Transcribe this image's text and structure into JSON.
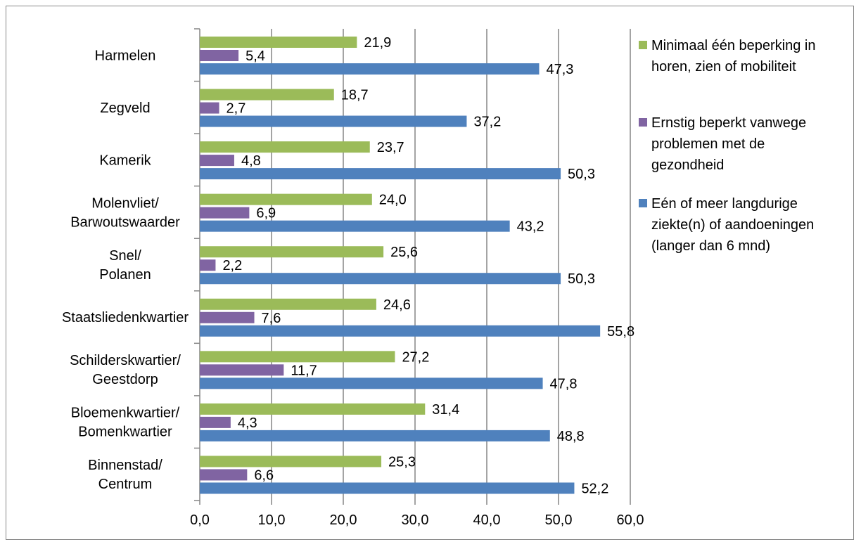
{
  "chart_data": {
    "type": "bar",
    "orientation": "horizontal",
    "categories": [
      "Harmelen",
      "Zegveld",
      "Kamerik",
      "Molenvliet/\nBarwoutswaarder",
      "Snel/\nPolanen",
      "Staatsliedenkwartier",
      "Schilderskwartier/\nGeestdorp",
      "Bloemenkwartier/\nBomenkwartier",
      "Binnenstad/\nCentrum"
    ],
    "series": [
      {
        "name": "Minimaal één beperking in horen, zien of mobiliteit",
        "color": "#9bbb59",
        "values": [
          21.9,
          18.7,
          23.7,
          24.0,
          25.6,
          24.6,
          27.2,
          31.4,
          25.3
        ],
        "labels": [
          "21,9",
          "18,7",
          "23,7",
          "24,0",
          "25,6",
          "24,6",
          "27,2",
          "31,4",
          "25,3"
        ]
      },
      {
        "name": "Ernstig beperkt vanwege problemen met de gezondheid",
        "color": "#8064a2",
        "values": [
          5.4,
          2.7,
          4.8,
          6.9,
          2.2,
          7.6,
          11.7,
          4.3,
          6.6
        ],
        "labels": [
          "5,4",
          "2,7",
          "4,8",
          "6,9",
          "2,2",
          "7,6",
          "11,7",
          "4,3",
          "6,6"
        ]
      },
      {
        "name": "Eén of meer langdurige ziekte(n) of aandoeningen (langer dan 6 mnd)",
        "color": "#4f81bd",
        "values": [
          47.3,
          37.2,
          50.3,
          43.2,
          50.3,
          55.8,
          47.8,
          48.8,
          52.2
        ],
        "labels": [
          "47,3",
          "37,2",
          "50,3",
          "43,2",
          "50,3",
          "55,8",
          "47,8",
          "48,8",
          "52,2"
        ]
      }
    ],
    "xlim": [
      0,
      60
    ],
    "xticks": [
      0,
      10,
      20,
      30,
      40,
      50,
      60
    ],
    "xtick_labels": [
      "0,0",
      "10,0",
      "20,0",
      "30,0",
      "40,0",
      "50,0",
      "60,0"
    ],
    "grid": true,
    "legend_position": "right",
    "legend": [
      [
        "Minimaal één beperking in",
        "horen, zien of mobiliteit"
      ],
      [
        "Ernstig beperkt vanwege",
        "problemen met de",
        "gezondheid"
      ],
      [
        "Eén of meer langdurige",
        "ziekte(n) of aandoeningen",
        "(langer dan 6 mnd)"
      ]
    ],
    "title": "",
    "xlabel": "",
    "ylabel": ""
  }
}
